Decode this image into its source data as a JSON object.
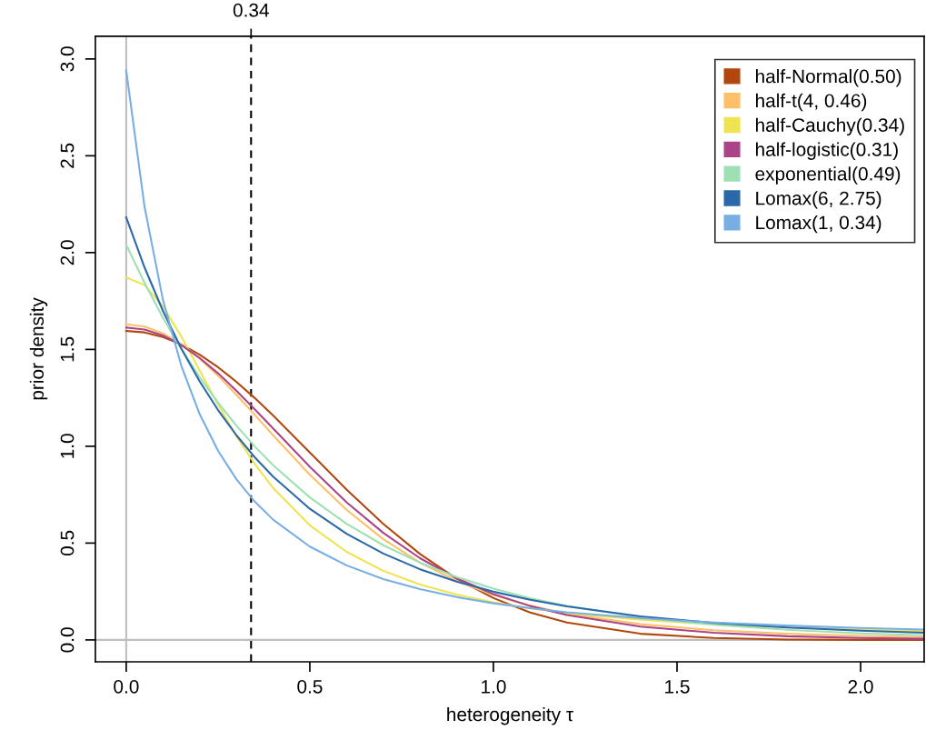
{
  "chart_data": {
    "type": "line",
    "xlabel": "heterogeneity τ",
    "ylabel": "prior density",
    "x": [
      0,
      0.05,
      0.1,
      0.15,
      0.2,
      0.25,
      0.3,
      0.35,
      0.4,
      0.5,
      0.6,
      0.7,
      0.8,
      0.9,
      1.0,
      1.1,
      1.2,
      1.4,
      1.6,
      1.8,
      2.0,
      2.17
    ],
    "series": [
      {
        "name": "half-Normal(0.50)",
        "color": "#b2470e",
        "values": [
          1.596,
          1.588,
          1.564,
          1.526,
          1.473,
          1.408,
          1.333,
          1.249,
          1.159,
          0.968,
          0.777,
          0.599,
          0.444,
          0.316,
          0.216,
          0.142,
          0.09,
          0.032,
          0.01,
          0.002,
          0.0,
          0.0
        ]
      },
      {
        "name": "half-t(4, 0.46)",
        "color": "#fdc068",
        "values": [
          1.63,
          1.618,
          1.583,
          1.527,
          1.453,
          1.364,
          1.266,
          1.162,
          1.057,
          0.853,
          0.672,
          0.52,
          0.399,
          0.304,
          0.232,
          0.177,
          0.136,
          0.081,
          0.05,
          0.032,
          0.021,
          0.015
        ]
      },
      {
        "name": "half-Cauchy(0.34)",
        "color": "#efe350",
        "values": [
          1.872,
          1.832,
          1.723,
          1.567,
          1.391,
          1.215,
          1.052,
          0.909,
          0.785,
          0.592,
          0.455,
          0.357,
          0.286,
          0.234,
          0.194,
          0.163,
          0.139,
          0.104,
          0.081,
          0.065,
          0.053,
          0.045
        ]
      },
      {
        "name": "half-logistic(0.31)",
        "color": "#aa4488",
        "values": [
          1.613,
          1.603,
          1.572,
          1.522,
          1.456,
          1.377,
          1.287,
          1.191,
          1.092,
          0.894,
          0.711,
          0.553,
          0.422,
          0.318,
          0.237,
          0.175,
          0.129,
          0.069,
          0.037,
          0.019,
          0.01,
          0.006
        ]
      },
      {
        "name": "exponential(0.49)",
        "color": "#9ee0b3",
        "values": [
          2.041,
          1.843,
          1.664,
          1.503,
          1.357,
          1.225,
          1.107,
          0.999,
          0.902,
          0.736,
          0.6,
          0.489,
          0.399,
          0.325,
          0.265,
          0.216,
          0.176,
          0.117,
          0.078,
          0.052,
          0.034,
          0.024
        ]
      },
      {
        "name": "Lomax(6, 2.75)",
        "color": "#2b68aa",
        "values": [
          2.182,
          1.923,
          1.699,
          1.504,
          1.335,
          1.187,
          1.057,
          0.943,
          0.843,
          0.677,
          0.548,
          0.446,
          0.365,
          0.301,
          0.249,
          0.207,
          0.173,
          0.122,
          0.088,
          0.064,
          0.048,
          0.037
        ]
      },
      {
        "name": "Lomax(1, 0.34)",
        "color": "#77aee3",
        "values": [
          2.941,
          2.235,
          1.756,
          1.416,
          1.166,
          0.977,
          0.83,
          0.714,
          0.621,
          0.482,
          0.385,
          0.314,
          0.262,
          0.221,
          0.189,
          0.164,
          0.143,
          0.112,
          0.09,
          0.074,
          0.062,
          0.054
        ]
      }
    ],
    "xlim": [
      -0.084,
      2.173
    ],
    "ylim": [
      -0.113,
      3.117
    ],
    "xticks": [
      {
        "value": 0,
        "label": "0.0"
      },
      {
        "value": 0.5,
        "label": "0.5"
      },
      {
        "value": 1.0,
        "label": "1.0"
      },
      {
        "value": 1.5,
        "label": "1.5"
      },
      {
        "value": 2.0,
        "label": "2.0"
      }
    ],
    "yticks": [
      {
        "value": 0,
        "label": "0.0"
      },
      {
        "value": 0.5,
        "label": "0.5"
      },
      {
        "value": 1.0,
        "label": "1.0"
      },
      {
        "value": 1.5,
        "label": "1.5"
      },
      {
        "value": 2.0,
        "label": "2.0"
      },
      {
        "value": 2.5,
        "label": "2.5"
      },
      {
        "value": 3.0,
        "label": "3.0"
      }
    ],
    "ref_lines": [
      {
        "axis": "x",
        "value": 0,
        "color": "#bebebe",
        "line_style": "solid"
      },
      {
        "axis": "y",
        "value": 0,
        "color": "#bebebe",
        "line_style": "solid"
      },
      {
        "axis": "x",
        "value": 0.34,
        "label": "0.34",
        "color": "#000000",
        "line_style": "dashed"
      }
    ],
    "grid": false,
    "legend": "top right",
    "marker": "none",
    "line_style": "solid"
  }
}
